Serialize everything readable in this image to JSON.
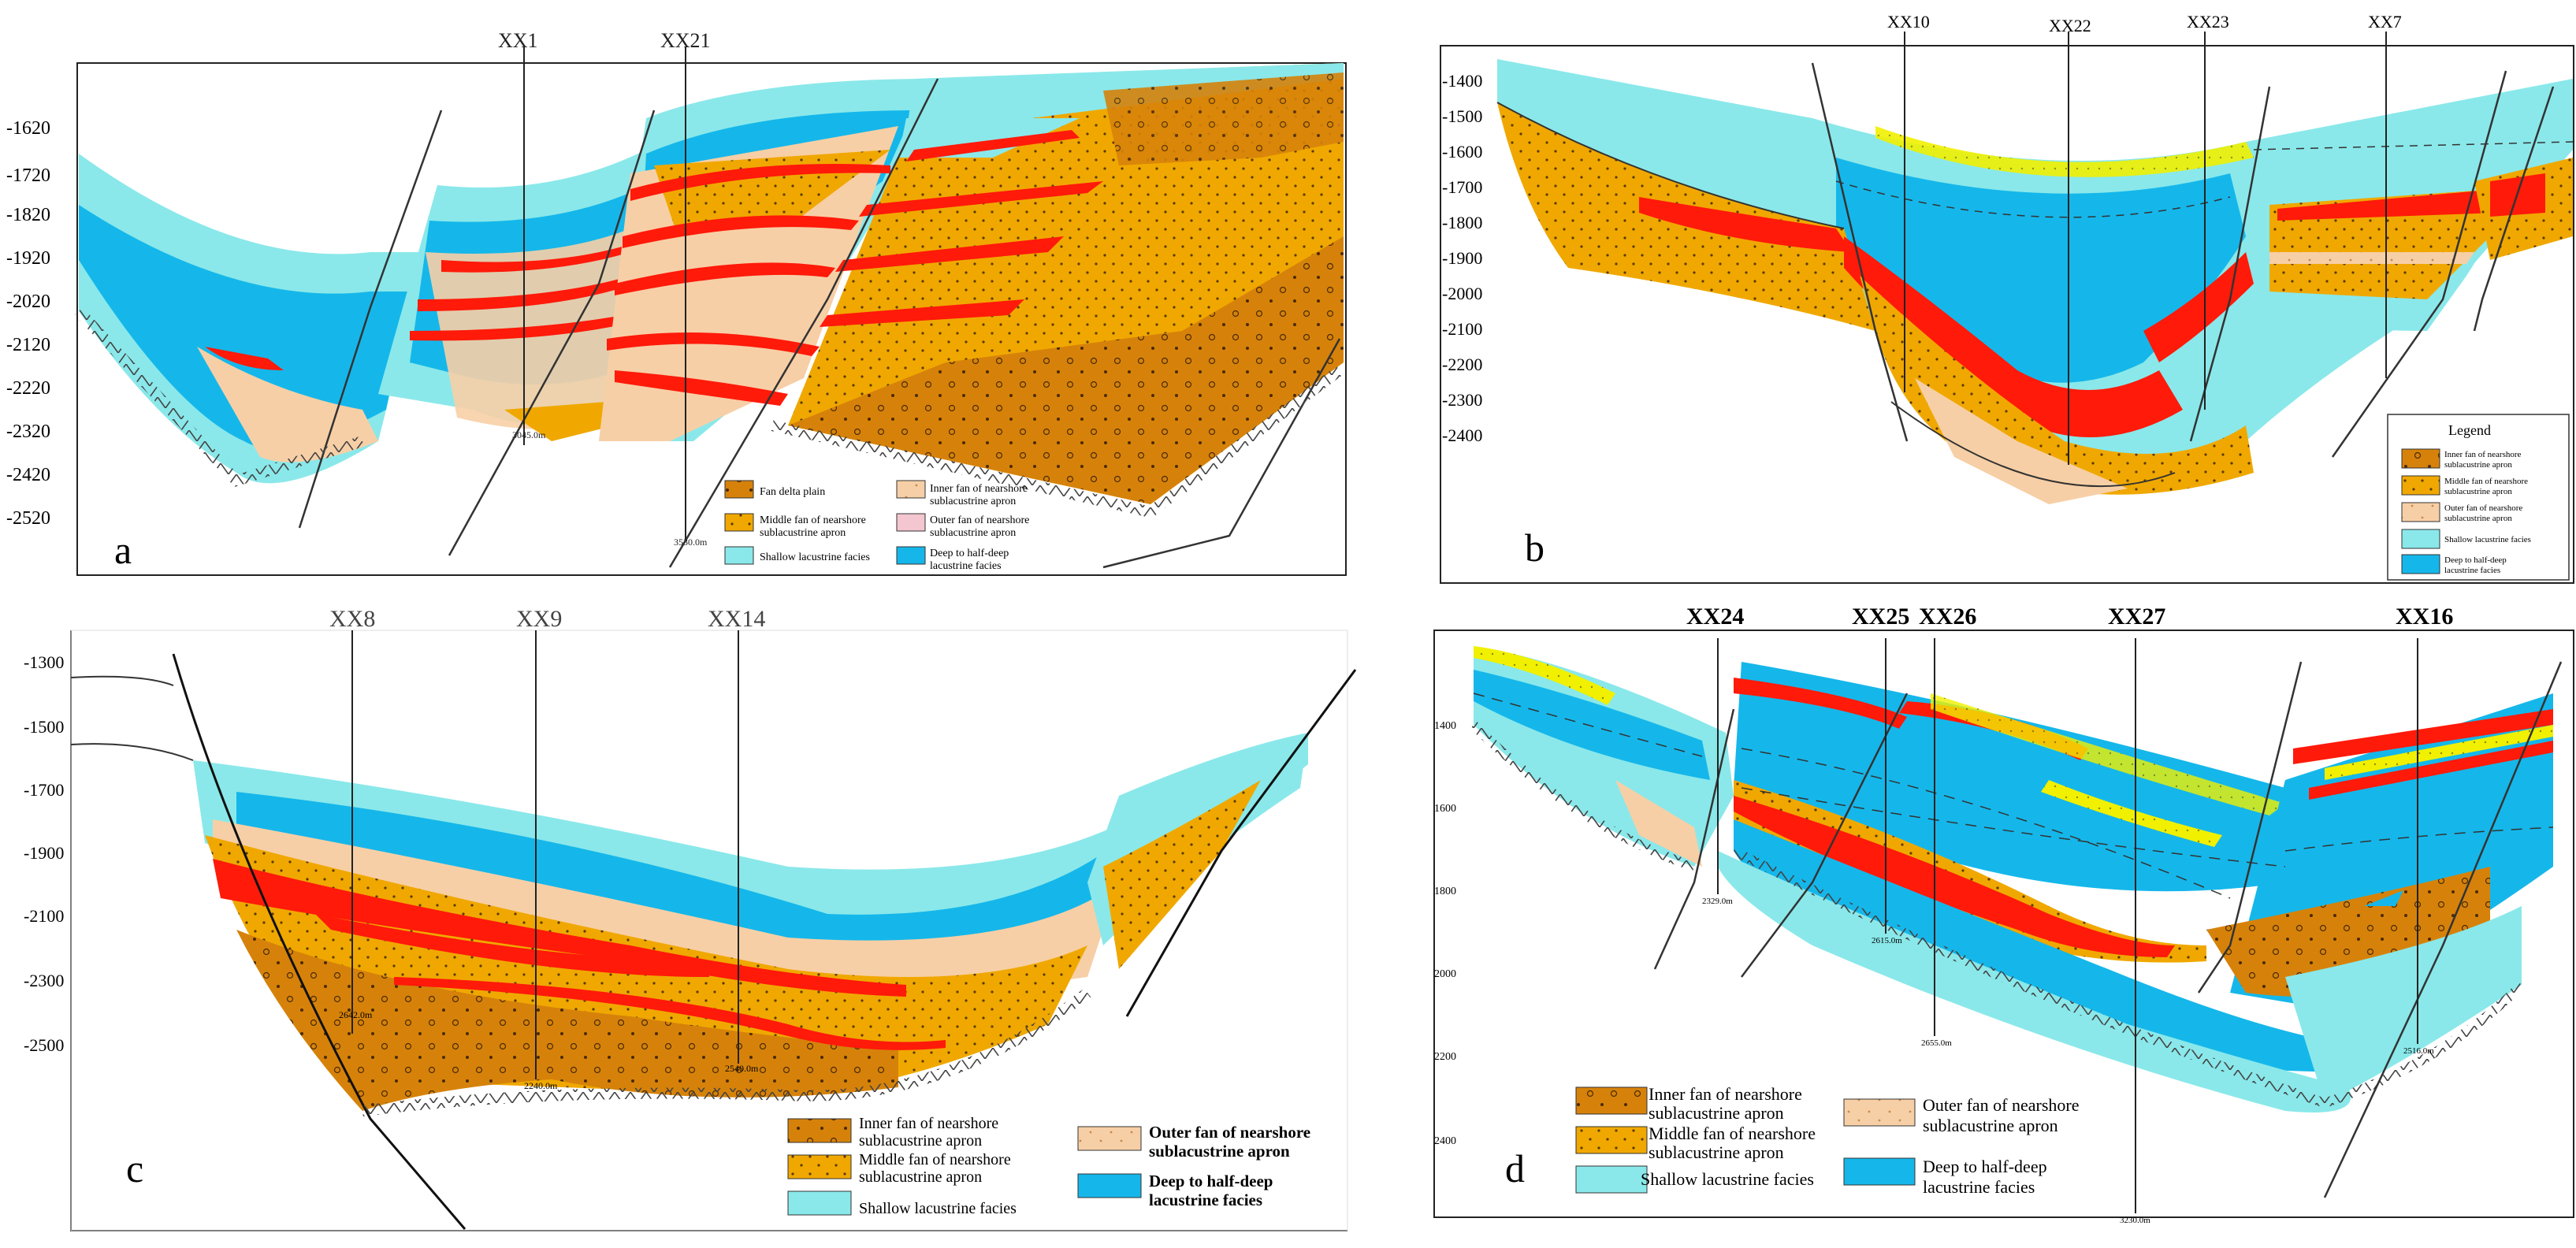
{
  "panels": {
    "a": {
      "label": "a",
      "wells": [
        "XX1",
        "XX21"
      ],
      "depths": [
        "-1620",
        "-1720",
        "-1820",
        "-1920",
        "-2020",
        "-2120",
        "-2220",
        "-2320",
        "-2420",
        "-2520"
      ],
      "well_depths": [
        "3045.0m",
        "3530.0m"
      ],
      "legend": {
        "fan_delta_plain": "Fan delta plain",
        "inner_fan_l1": "Inner fan of nearshore",
        "inner_fan_l2": "sublacustrine apron",
        "middle_fan_l1": "Middle fan of nearshore",
        "middle_fan_l2": "sublacustrine apron",
        "outer_fan_l1": "Outer fan of nearshore",
        "outer_fan_l2": "sublacustrine apron",
        "shallow": "Shallow lacustrine facies",
        "deep_l1": "Deep to half-deep",
        "deep_l2": "lacustrine facies"
      }
    },
    "b": {
      "label": "b",
      "wells": [
        "XX10",
        "XX22",
        "XX23",
        "XX7"
      ],
      "depths": [
        "-1400",
        "-1500",
        "-1600",
        "-1700",
        "-1800",
        "-1900",
        "-2000",
        "-2100",
        "-2200",
        "-2300",
        "-2400"
      ],
      "legend": {
        "title": "Legend",
        "inner_l1": "Inner fan of nearshore",
        "inner_l2": "sublacustrine apron",
        "middle_l1": "Middle fan of nearshore",
        "middle_l2": "sublacustrine apron",
        "outer_l1": "Outer fan of nearshore",
        "outer_l2": "sublacustrine apron",
        "shallow": "Shallow lacustrine facies",
        "deep_l1": "Deep to half-deep",
        "deep_l2": "lacustrine facies"
      }
    },
    "c": {
      "label": "c",
      "wells": [
        "XX8",
        "XX9",
        "XX14"
      ],
      "depths": [
        "-1300",
        "-1500",
        "-1700",
        "-1900",
        "-2100",
        "-2300",
        "-2500"
      ],
      "well_depths": [
        "2642.0m",
        "2240.0m",
        "2540.0m"
      ],
      "legend": {
        "inner_l1": "Inner fan of nearshore",
        "inner_l2": "sublacustrine apron",
        "middle_l1": "Middle fan of nearshore",
        "middle_l2": "sublacustrine apron",
        "shallow": "Shallow lacustrine facies",
        "outer_l1": "Outer fan of nearshore",
        "outer_l2": "sublacustrine apron",
        "deep_l1": "Deep to half-deep",
        "deep_l2": "lacustrine facies"
      }
    },
    "d": {
      "label": "d",
      "wells": [
        "XX24",
        "XX25",
        "XX26",
        "XX27",
        "XX16"
      ],
      "depths": [
        "1400",
        "1600",
        "1800",
        "2000",
        "2200",
        "2400"
      ],
      "well_depths": [
        "2329.0m",
        "2615.0m",
        "2655.0m",
        "3230.0m",
        "2516.0m"
      ],
      "legend": {
        "inner_l1": "Inner fan of nearshore",
        "inner_l2": "sublacustrine apron",
        "middle_l1": "Middle fan of nearshore",
        "middle_l2": "sublacustrine apron",
        "shallow": "Shallow lacustrine facies",
        "outer_l1": "Outer fan of nearshore",
        "outer_l2": "sublacustrine apron",
        "deep_l1": "Deep to half-deep",
        "deep_l2": "lacustrine facies"
      }
    }
  },
  "colors": {
    "deep": "#15b7ea",
    "shallow": "#8ae8ea",
    "middle_fan": "#f0a800",
    "inner_fan": "#d6820a",
    "outer_fan": "#f7cfa6",
    "red": "#ff1a0a",
    "yellow": "#f0f000"
  }
}
